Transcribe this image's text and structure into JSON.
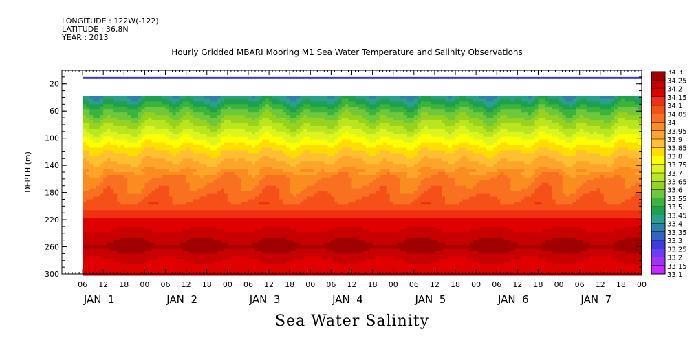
{
  "header": {
    "longitude": "LONGITUDE : 122W(-122)",
    "latitude": "LATITUDE : 36.8N",
    "year": "YEAR : 2013"
  },
  "chart_data": {
    "type": "heatmap",
    "title": "Hourly Gridded MBARI Mooring M1 Sea Water Temperature and Salinity Observations",
    "xlabel": "Sea Water Salinity",
    "ylabel": "DEPTH (m)",
    "ylim": [
      300,
      0
    ],
    "y_ticks": [
      20,
      60,
      100,
      140,
      180,
      220,
      260,
      300
    ],
    "x_hour_ticks": [
      "06",
      "12",
      "18",
      "00",
      "06",
      "12",
      "18",
      "00",
      "06",
      "12",
      "18",
      "00",
      "06",
      "12",
      "18",
      "00",
      "06",
      "12",
      "18",
      "00",
      "06",
      "12",
      "18",
      "00",
      "06",
      "12",
      "18",
      "00"
    ],
    "x_day_labels": [
      "JAN  1",
      "JAN  2",
      "JAN  3",
      "JAN  4",
      "JAN  5",
      "JAN  6",
      "JAN  7"
    ],
    "x_range_hours": [
      0,
      168
    ],
    "data_start_hour": 6,
    "colorbar_levels": [
      34.3,
      34.25,
      34.2,
      34.15,
      34.1,
      34.05,
      34,
      33.95,
      33.9,
      33.85,
      33.8,
      33.75,
      33.7,
      33.65,
      33.6,
      33.55,
      33.5,
      33.45,
      33.4,
      33.35,
      33.3,
      33.25,
      33.2,
      33.15,
      33.1
    ],
    "colorbar_colors": [
      "#a00000",
      "#c80000",
      "#e00000",
      "#f03010",
      "#f55018",
      "#f87020",
      "#fb8c20",
      "#fda52a",
      "#fec030",
      "#ffdd00",
      "#fbff00",
      "#dcf51e",
      "#b9e61e",
      "#96d21e",
      "#6ec83c",
      "#3cb43c",
      "#1ea050",
      "#28a08c",
      "#2c82aa",
      "#3264c8",
      "#3c3cdc",
      "#6e3cf0",
      "#a032f5",
      "#c828ff"
    ],
    "missing_depth_band_m": [
      10,
      38
    ],
    "depth_profile": [
      {
        "depth": 10,
        "salinity": 33.25
      },
      {
        "depth": 40,
        "salinity": 33.42
      },
      {
        "depth": 60,
        "salinity": 33.55
      },
      {
        "depth": 80,
        "salinity": 33.65
      },
      {
        "depth": 100,
        "salinity": 33.75
      },
      {
        "depth": 120,
        "salinity": 33.85
      },
      {
        "depth": 140,
        "salinity": 33.92
      },
      {
        "depth": 160,
        "salinity": 34.0
      },
      {
        "depth": 180,
        "salinity": 34.03
      },
      {
        "depth": 200,
        "salinity": 34.08
      },
      {
        "depth": 220,
        "salinity": 34.15
      },
      {
        "depth": 240,
        "salinity": 34.22
      },
      {
        "depth": 260,
        "salinity": 34.27
      },
      {
        "depth": 280,
        "salinity": 34.2
      },
      {
        "depth": 300,
        "salinity": 34.15
      }
    ]
  }
}
